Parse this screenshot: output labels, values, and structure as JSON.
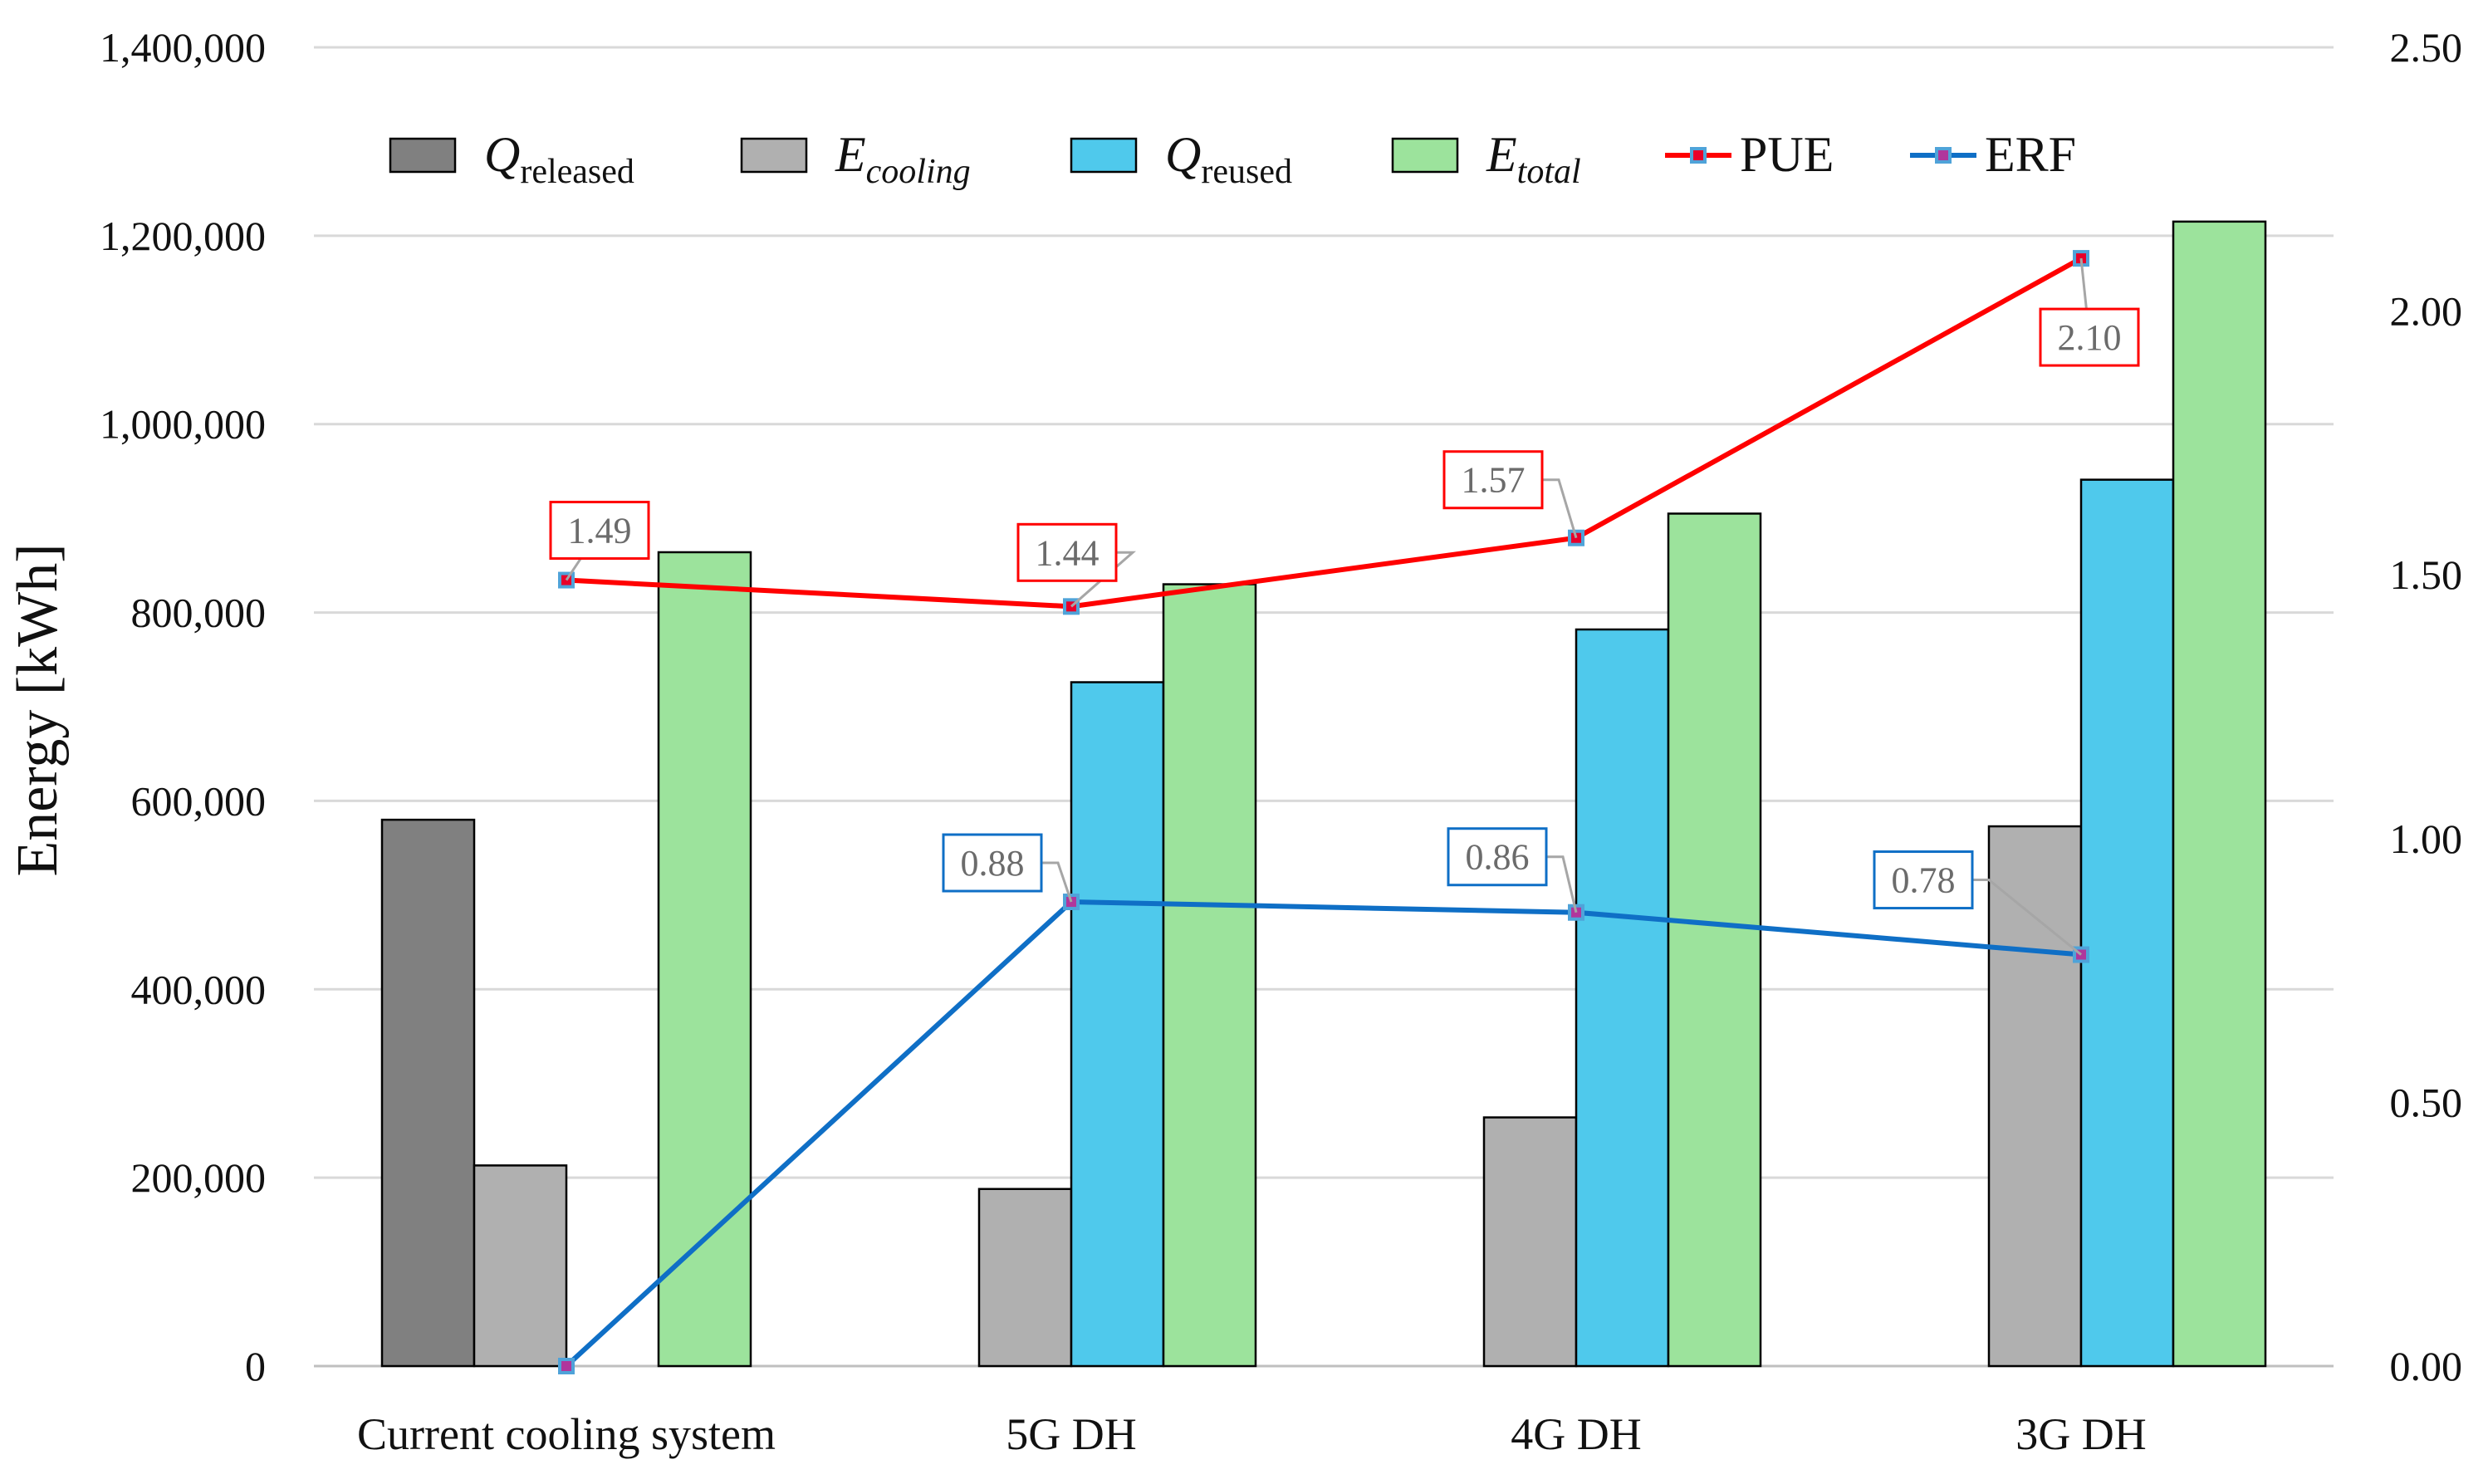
{
  "chart_data": {
    "type": "bar",
    "categories": [
      "Current cooling system",
      "5G DH",
      "4G DH",
      "3G DH"
    ],
    "ylabel": "Energy [kWh]",
    "ylim": [
      0,
      1400000
    ],
    "y_ticks": [
      "0",
      "200,000",
      "400,000",
      "600,000",
      "800,000",
      "1,000,000",
      "1,200,000",
      "1,400,000"
    ],
    "y2lim": [
      0,
      2.5
    ],
    "y2_ticks": [
      "0.00",
      "0.50",
      "1.00",
      "1.50",
      "2.00",
      "2.50"
    ],
    "grid": true,
    "legend_position": "top",
    "bar_series": [
      {
        "name": "Q",
        "sub": "released",
        "italic_sub": false,
        "color": "#808080",
        "values": [
          580000,
          null,
          null,
          null
        ]
      },
      {
        "name": "E",
        "sub": "cooling",
        "italic_sub": true,
        "color": "#b0b0b0",
        "values": [
          213000,
          188000,
          264000,
          573000
        ]
      },
      {
        "name": "Q",
        "sub": "reused",
        "italic_sub": false,
        "color": "#4fc9ec",
        "values": [
          null,
          726000,
          782000,
          941000
        ]
      },
      {
        "name": "E",
        "sub": "total",
        "italic_sub": true,
        "color": "#9ce39c",
        "values": [
          864000,
          830000,
          905000,
          1215000
        ]
      }
    ],
    "line_series": [
      {
        "name": "PUE",
        "color": "#ff0000",
        "axis": "secondary",
        "values": [
          1.49,
          1.44,
          1.57,
          2.1
        ],
        "labels": [
          "1.49",
          "1.44",
          "1.57",
          "2.10"
        ]
      },
      {
        "name": "ERF",
        "color": "#0f6fc6",
        "axis": "secondary",
        "values": [
          0.0,
          0.88,
          0.86,
          0.78
        ],
        "labels": [
          null,
          "0.88",
          "0.86",
          "0.78"
        ]
      }
    ]
  }
}
